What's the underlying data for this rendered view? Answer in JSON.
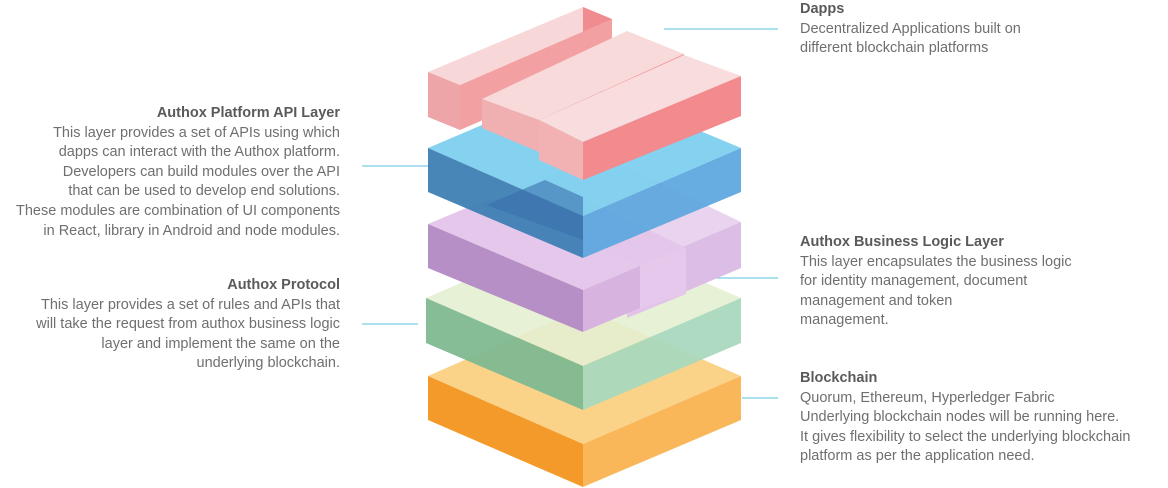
{
  "layers": {
    "dapps": {
      "title": "Dapps",
      "lines": [
        "Decentralized Applications built on",
        "different blockchain platforms"
      ]
    },
    "api": {
      "title": "Authox Platform API Layer",
      "lines": [
        "This layer provides a set of APIs using which",
        "dapps can interact with the Authox platform.",
        "Developers can build modules over the API",
        "that can be used to develop end solutions.",
        "These modules are combination of UI components",
        "in React, library in Android and node modules."
      ]
    },
    "business": {
      "title": "Authox Business Logic Layer",
      "lines": [
        "This layer encapsulates the business logic",
        "for identity management, document",
        "management and token",
        "management."
      ]
    },
    "protocol": {
      "title": "Authox Protocol",
      "lines": [
        "This layer provides a set of rules and APIs that",
        "will take the request from authox business logic",
        "layer and implement the same on the",
        "underlying blockchain."
      ]
    },
    "blockchain": {
      "title": "Blockchain",
      "lines": [
        "Quorum, Ethereum, Hyperledger Fabric",
        "Underlying blockchain nodes will be running here.",
        "It gives flexibility to select the underlying blockchain",
        "platform as per the application need."
      ]
    }
  },
  "colors": {
    "blockchain": "#f7a337",
    "protocol": "#8cc9a3",
    "business": "#c9a2d3",
    "api": "#56b8e6",
    "dapps": "#f29395",
    "connector": "#5bc2dd"
  }
}
